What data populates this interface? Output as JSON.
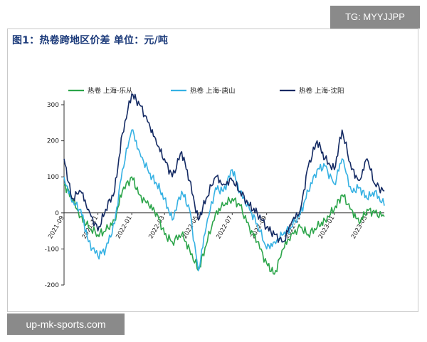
{
  "header": {
    "title": "图1：热卷跨地区价差   单位：元/吨"
  },
  "watermarks": {
    "tg": "TG: MYYJJPP",
    "site": "up-mk-sports.com"
  },
  "chart_data": {
    "type": "line",
    "title": "图1：热卷跨地区价差   单位：元/吨",
    "ylim": [
      -200,
      300
    ],
    "yticks": [
      300,
      200,
      100,
      0,
      -100,
      -200
    ],
    "xticks": [
      "2021-09",
      "2021-11",
      "2022-01",
      "2022-03",
      "2022-05",
      "2022-07",
      "2022-09",
      "2022-11",
      "2023-01",
      "2023-03"
    ],
    "legend_position": "top",
    "grid": false,
    "series": [
      {
        "name": "热卷 上海-乐从",
        "color": "#2ca54a",
        "x": [
          "2021-09-01",
          "2021-09-15",
          "2021-10-01",
          "2021-10-15",
          "2021-11-01",
          "2021-11-15",
          "2021-12-01",
          "2021-12-15",
          "2022-01-01",
          "2022-01-15",
          "2022-02-01",
          "2022-02-15",
          "2022-03-01",
          "2022-03-15",
          "2022-04-01",
          "2022-04-15",
          "2022-05-01",
          "2022-05-15",
          "2022-06-01",
          "2022-06-15",
          "2022-07-01",
          "2022-07-15",
          "2022-08-01",
          "2022-08-15",
          "2022-09-01",
          "2022-09-15",
          "2022-10-01",
          "2022-10-15",
          "2022-11-01",
          "2022-11-15",
          "2022-12-01",
          "2022-12-15",
          "2023-01-01",
          "2023-01-15",
          "2023-02-01",
          "2023-02-15",
          "2023-03-01",
          "2023-03-15",
          "2023-04-01"
        ],
        "y": [
          80,
          40,
          -10,
          -40,
          -60,
          -50,
          -20,
          60,
          100,
          50,
          20,
          0,
          -60,
          -80,
          -60,
          -100,
          -160,
          -90,
          0,
          20,
          40,
          20,
          -40,
          -80,
          -140,
          -170,
          -100,
          -60,
          -40,
          -60,
          -40,
          -20,
          10,
          50,
          10,
          -30,
          10,
          0,
          -10
        ]
      },
      {
        "name": "热卷 上海-唐山",
        "color": "#35b1e3",
        "x": [
          "2021-09-01",
          "2021-09-15",
          "2021-10-01",
          "2021-10-15",
          "2021-11-01",
          "2021-11-15",
          "2021-12-01",
          "2021-12-15",
          "2022-01-01",
          "2022-01-15",
          "2022-02-01",
          "2022-02-15",
          "2022-03-01",
          "2022-03-15",
          "2022-04-01",
          "2022-04-15",
          "2022-05-01",
          "2022-05-15",
          "2022-06-01",
          "2022-06-15",
          "2022-07-01",
          "2022-07-15",
          "2022-08-01",
          "2022-08-15",
          "2022-09-01",
          "2022-09-15",
          "2022-10-01",
          "2022-10-15",
          "2022-11-01",
          "2022-11-15",
          "2022-12-01",
          "2022-12-15",
          "2023-01-01",
          "2023-01-15",
          "2023-02-01",
          "2023-02-15",
          "2023-03-01",
          "2023-03-15",
          "2023-04-01"
        ],
        "y": [
          100,
          30,
          10,
          -80,
          -120,
          -100,
          -30,
          120,
          230,
          170,
          110,
          80,
          40,
          -20,
          60,
          10,
          -160,
          -40,
          70,
          60,
          120,
          60,
          10,
          -30,
          -100,
          -80,
          -60,
          -40,
          0,
          60,
          120,
          130,
          80,
          150,
          60,
          70,
          40,
          60,
          20
        ]
      },
      {
        "name": "热卷 上海-沈阳",
        "color": "#142a63",
        "x": [
          "2021-09-01",
          "2021-09-15",
          "2021-10-01",
          "2021-10-15",
          "2021-11-01",
          "2021-11-15",
          "2021-12-01",
          "2021-12-15",
          "2022-01-01",
          "2022-01-15",
          "2022-02-01",
          "2022-02-15",
          "2022-03-01",
          "2022-03-15",
          "2022-04-01",
          "2022-04-15",
          "2022-05-01",
          "2022-05-15",
          "2022-06-01",
          "2022-06-15",
          "2022-07-01",
          "2022-07-15",
          "2022-08-01",
          "2022-08-15",
          "2022-09-01",
          "2022-09-15",
          "2022-10-01",
          "2022-10-15",
          "2022-11-01",
          "2022-11-15",
          "2022-12-01",
          "2022-12-15",
          "2023-01-01",
          "2023-01-15",
          "2023-02-01",
          "2023-02-15",
          "2023-03-01",
          "2023-03-15",
          "2023-04-01"
        ],
        "y": [
          150,
          40,
          60,
          10,
          -50,
          10,
          60,
          220,
          330,
          300,
          250,
          190,
          150,
          100,
          170,
          90,
          -20,
          40,
          100,
          80,
          90,
          60,
          20,
          0,
          -40,
          -60,
          -80,
          -30,
          10,
          130,
          200,
          150,
          120,
          230,
          120,
          90,
          150,
          80,
          60
        ]
      }
    ]
  }
}
